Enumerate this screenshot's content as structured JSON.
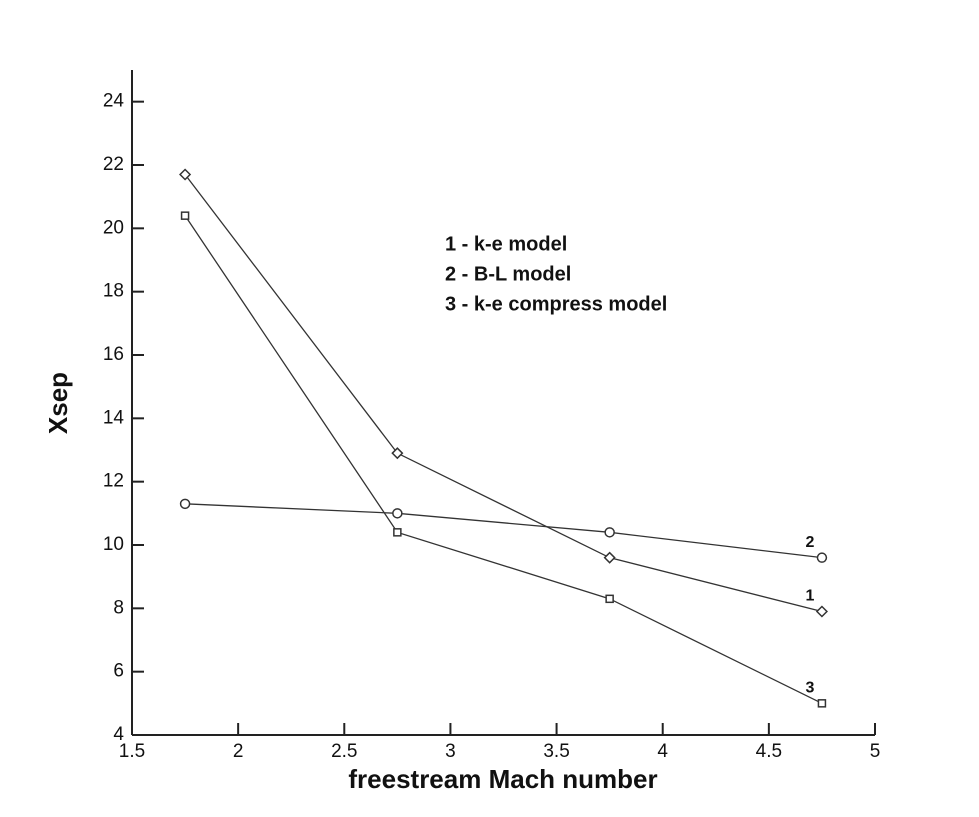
{
  "chart_data": {
    "type": "line",
    "x_label": "freestream Mach number",
    "y_label": "Xsep",
    "x": [
      1.75,
      2.75,
      3.75,
      4.75
    ],
    "series": [
      {
        "name": "1 - k-e model",
        "tag": "1",
        "marker": "diamond",
        "color": "#333333",
        "values": [
          21.7,
          12.9,
          9.6,
          7.9
        ]
      },
      {
        "name": "2 - B-L model",
        "tag": "2",
        "marker": "circle",
        "color": "#333333",
        "values": [
          11.3,
          11.0,
          10.4,
          9.6
        ]
      },
      {
        "name": "3 - k-e compress model",
        "tag": "3",
        "marker": "square",
        "color": "#333333",
        "values": [
          20.4,
          10.4,
          8.3,
          5.0
        ]
      }
    ],
    "xlim": [
      1.5,
      5
    ],
    "xticks": [
      1.5,
      2,
      2.5,
      3,
      3.5,
      4,
      4.5,
      5
    ],
    "ylim": [
      4,
      25
    ],
    "yticks": [
      4,
      6,
      8,
      10,
      12,
      14,
      16,
      18,
      20,
      22,
      24
    ],
    "grid": false
  }
}
